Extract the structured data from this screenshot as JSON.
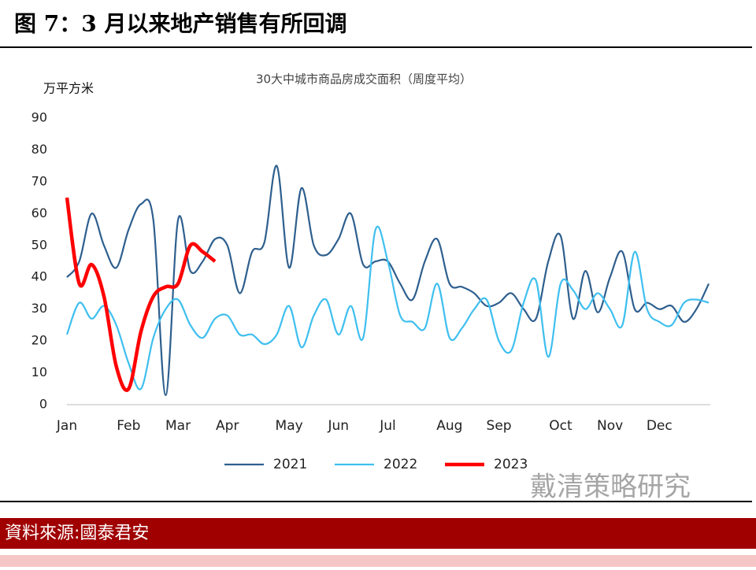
{
  "header": {
    "title": "图 7：3 月以来地产销售有所回调"
  },
  "chart_data": {
    "type": "line",
    "title": "30大中城市商品房成交面积（周度平均）",
    "y_label": "万平方米",
    "categories": [
      "Jan",
      null,
      null,
      null,
      null,
      "Feb",
      null,
      null,
      null,
      "Mar",
      null,
      null,
      null,
      "Apr",
      null,
      null,
      null,
      null,
      "May",
      null,
      null,
      null,
      "Jun",
      null,
      null,
      null,
      "Jul",
      null,
      null,
      null,
      null,
      "Aug",
      null,
      null,
      null,
      "Sep",
      null,
      null,
      null,
      null,
      "Oct",
      null,
      null,
      null,
      "Nov",
      null,
      null,
      null,
      "Dec",
      null,
      null,
      null,
      null
    ],
    "series": [
      {
        "name": "2021",
        "color": "#2e5f8e",
        "values": [
          40,
          45,
          60,
          50,
          43,
          55,
          63,
          58,
          3,
          58,
          42,
          45,
          52,
          50,
          35,
          48,
          51,
          75,
          43,
          68,
          50,
          47,
          52,
          60,
          44,
          45,
          45,
          38,
          33,
          45,
          52,
          38,
          37,
          35,
          31,
          32,
          35,
          30,
          27,
          45,
          53,
          27,
          42,
          29,
          40,
          48,
          30,
          32,
          30,
          31,
          26,
          30,
          38
        ]
      },
      {
        "name": "2022",
        "color": "#3fbfef",
        "values": [
          22,
          32,
          27,
          31,
          25,
          13,
          5,
          21,
          30,
          33,
          25,
          21,
          27,
          28,
          22,
          22,
          19,
          22,
          31,
          18,
          28,
          33,
          22,
          31,
          21,
          55,
          45,
          28,
          26,
          24,
          38,
          21,
          24,
          30,
          33,
          20,
          17,
          32,
          39,
          15,
          38,
          36,
          30,
          35,
          30,
          25,
          48,
          30,
          26,
          25,
          32,
          33,
          32
        ]
      },
      {
        "name": "2023",
        "color": "#ff0000",
        "values": [
          65,
          38,
          44,
          34,
          12,
          5,
          23,
          34,
          37,
          38,
          50,
          48,
          45,
          null,
          null,
          null,
          null,
          null,
          null,
          null,
          null,
          null,
          null,
          null,
          null,
          null,
          null,
          null,
          null,
          null,
          null,
          null,
          null,
          null,
          null,
          null,
          null,
          null,
          null,
          null,
          null,
          null,
          null,
          null,
          null,
          null,
          null,
          null,
          null,
          null,
          null,
          null,
          null
        ]
      }
    ],
    "ylim": [
      0,
      90
    ],
    "yticks": [
      0,
      10,
      20,
      30,
      40,
      50,
      60,
      70,
      80,
      90
    ]
  },
  "watermark": "戴清策略研究",
  "footer": {
    "source": "資料來源:國泰君安"
  }
}
